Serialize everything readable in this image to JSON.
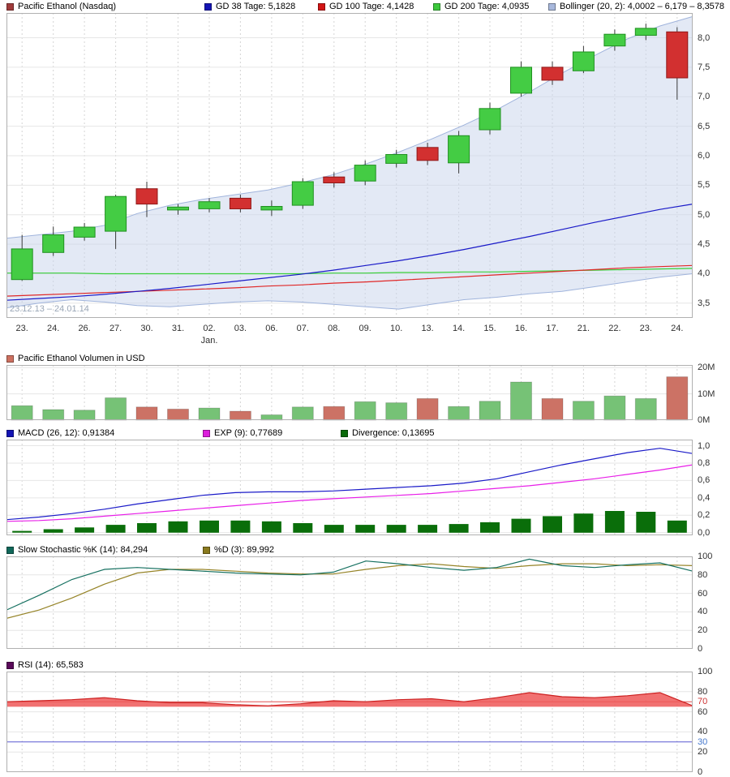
{
  "page": {
    "background": "#ffffff"
  },
  "chart_data": [
    {
      "id": "price",
      "type": "candlestick",
      "legend": [
        {
          "label": "Pacific Ethanol (Nasdaq)",
          "color": "#a03b3b"
        },
        {
          "label": "GD 38 Tage: 5,1828",
          "color": "#1414b4"
        },
        {
          "label": "GD 100 Tage: 4,1428",
          "color": "#d21414"
        },
        {
          "label": "GD 200 Tage: 4,0935",
          "color": "#3cc83c"
        },
        {
          "label": "Bollinger (20, 2): 4,0002 – 6,179 – 8,3578",
          "color": "#a8b8dc"
        }
      ],
      "categories": [
        "23.",
        "24.",
        "26.",
        "27.",
        "30.",
        "31.",
        "02.",
        "03.",
        "06.",
        "07.",
        "08.",
        "09.",
        "10.",
        "13.",
        "14.",
        "15.",
        "16.",
        "17.",
        "21.",
        "22.",
        "23.",
        "24."
      ],
      "month_label": "Jan.",
      "month_label_index": 6,
      "date_range_label": "23.12.13 – 24.01.14",
      "ylim": [
        3.25,
        8.42
      ],
      "yticks": [
        {
          "v": 8.0,
          "label": "8,0"
        },
        {
          "v": 7.5,
          "label": "7,5"
        },
        {
          "v": 7.0,
          "label": "7,0"
        },
        {
          "v": 6.5,
          "label": "6,5"
        },
        {
          "v": 6.0,
          "label": "6,0"
        },
        {
          "v": 5.5,
          "label": "5,5"
        },
        {
          "v": 5.0,
          "label": "5,0"
        },
        {
          "v": 4.5,
          "label": "4,5"
        },
        {
          "v": 4.0,
          "label": "4,0"
        },
        {
          "v": 3.5,
          "label": "3,5"
        }
      ],
      "series": {
        "candles_ohlc": [
          [
            3.9,
            4.66,
            3.88,
            4.42
          ],
          [
            4.36,
            4.8,
            4.3,
            4.66
          ],
          [
            4.62,
            4.86,
            4.56,
            4.79
          ],
          [
            4.72,
            5.34,
            4.42,
            5.31
          ],
          [
            5.44,
            5.56,
            4.96,
            5.18
          ],
          [
            5.08,
            5.18,
            5.0,
            5.13
          ],
          [
            5.1,
            5.28,
            5.04,
            5.22
          ],
          [
            5.28,
            5.34,
            5.04,
            5.1
          ],
          [
            5.08,
            5.24,
            4.98,
            5.14
          ],
          [
            5.16,
            5.62,
            5.1,
            5.56
          ],
          [
            5.64,
            5.72,
            5.46,
            5.54
          ],
          [
            5.57,
            5.92,
            5.5,
            5.84
          ],
          [
            5.87,
            6.1,
            5.8,
            6.02
          ],
          [
            6.14,
            6.22,
            5.84,
            5.92
          ],
          [
            5.88,
            6.42,
            5.7,
            6.34
          ],
          [
            6.44,
            6.9,
            6.36,
            6.8
          ],
          [
            7.06,
            7.6,
            7.0,
            7.5
          ],
          [
            7.5,
            7.6,
            7.2,
            7.28
          ],
          [
            7.44,
            7.86,
            7.4,
            7.76
          ],
          [
            7.86,
            8.14,
            7.78,
            8.06
          ],
          [
            8.04,
            8.24,
            7.96,
            8.16
          ],
          [
            8.1,
            8.18,
            6.95,
            7.32
          ]
        ],
        "bollinger_upper": [
          4.6,
          4.66,
          4.72,
          4.82,
          5.02,
          5.16,
          5.26,
          5.34,
          5.42,
          5.54,
          5.68,
          5.86,
          6.06,
          6.28,
          6.52,
          6.78,
          7.08,
          7.4,
          7.7,
          7.98,
          8.2,
          8.36
        ],
        "bollinger_lower": [
          3.42,
          3.5,
          3.56,
          3.52,
          3.46,
          3.44,
          3.48,
          3.52,
          3.54,
          3.52,
          3.48,
          3.44,
          3.4,
          3.48,
          3.56,
          3.6,
          3.66,
          3.7,
          3.78,
          3.86,
          3.94,
          4.0
        ],
        "gd38": [
          3.55,
          3.58,
          3.61,
          3.65,
          3.7,
          3.75,
          3.81,
          3.87,
          3.93,
          3.99,
          4.06,
          4.14,
          4.22,
          4.31,
          4.41,
          4.52,
          4.63,
          4.75,
          4.87,
          4.98,
          5.09,
          5.18
        ],
        "gd100": [
          3.62,
          3.64,
          3.66,
          3.68,
          3.7,
          3.72,
          3.74,
          3.76,
          3.79,
          3.81,
          3.84,
          3.86,
          3.89,
          3.92,
          3.95,
          3.98,
          4.01,
          4.04,
          4.07,
          4.1,
          4.12,
          4.14
        ],
        "gd200": [
          4.01,
          4.01,
          4.01,
          4.0,
          4.0,
          4.0,
          4.0,
          4.0,
          4.0,
          4.0,
          4.01,
          4.01,
          4.02,
          4.02,
          4.03,
          4.03,
          4.04,
          4.05,
          4.06,
          4.07,
          4.08,
          4.09
        ]
      },
      "colors": {
        "up": "#44cc44",
        "up_stroke": "#209020",
        "down": "#d23030",
        "down_stroke": "#8f1818",
        "bollinger_fill": "#c8d4ec",
        "bollinger_edge": "#a0b4dc",
        "gd38": "#1a1ac8",
        "gd100": "#e02828",
        "gd200": "#38d038"
      }
    },
    {
      "id": "volume",
      "type": "bar",
      "legend": [
        {
          "label": "Pacific Ethanol Volumen in USD",
          "color": "#cd7060"
        }
      ],
      "ylim": [
        0,
        21
      ],
      "yticks": [
        {
          "v": 20,
          "label": "20M"
        },
        {
          "v": 10,
          "label": "10M"
        },
        {
          "v": 0,
          "label": "0M"
        }
      ],
      "values_millions": [
        5.5,
        4.0,
        3.8,
        8.5,
        5.0,
        4.2,
        4.6,
        3.4,
        2.0,
        5.0,
        5.2,
        7.0,
        6.6,
        8.2,
        5.2,
        7.2,
        14.5,
        8.2,
        7.2,
        9.2,
        8.2,
        16.5
      ],
      "directions": [
        "up",
        "up",
        "up",
        "up",
        "down",
        "down",
        "up",
        "down",
        "up",
        "up",
        "down",
        "up",
        "up",
        "down",
        "up",
        "up",
        "up",
        "down",
        "up",
        "up",
        "up",
        "down"
      ],
      "colors": {
        "up": "#76c276",
        "down": "#cc7265"
      }
    },
    {
      "id": "macd",
      "type": "line+histogram",
      "legend": [
        {
          "label": "MACD (26, 12): 0,91384",
          "color": "#1414b4"
        },
        {
          "label": "EXP (9): 0,77689",
          "color": "#dc1edc"
        },
        {
          "label": "Divergence: 0,13695",
          "color": "#0a6a0a"
        }
      ],
      "ylim": [
        -0.03,
        1.07
      ],
      "yticks": [
        {
          "v": 1.0,
          "label": "1,0"
        },
        {
          "v": 0.8,
          "label": "0,8"
        },
        {
          "v": 0.6,
          "label": "0,6"
        },
        {
          "v": 0.4,
          "label": "0,4"
        },
        {
          "v": 0.2,
          "label": "0,2"
        },
        {
          "v": 0.0,
          "label": "0,0"
        }
      ],
      "macd": [
        0.15,
        0.18,
        0.22,
        0.27,
        0.33,
        0.38,
        0.43,
        0.46,
        0.47,
        0.47,
        0.48,
        0.5,
        0.52,
        0.54,
        0.57,
        0.62,
        0.7,
        0.78,
        0.85,
        0.92,
        0.97,
        0.91
      ],
      "signal": [
        0.13,
        0.14,
        0.16,
        0.19,
        0.22,
        0.25,
        0.28,
        0.31,
        0.34,
        0.37,
        0.39,
        0.41,
        0.43,
        0.45,
        0.48,
        0.51,
        0.54,
        0.58,
        0.62,
        0.67,
        0.72,
        0.78
      ],
      "histogram": [
        0.02,
        0.04,
        0.06,
        0.09,
        0.11,
        0.13,
        0.14,
        0.14,
        0.13,
        0.11,
        0.09,
        0.09,
        0.09,
        0.09,
        0.1,
        0.12,
        0.16,
        0.19,
        0.22,
        0.25,
        0.24,
        0.14
      ],
      "colors": {
        "macd": "#1a1ac8",
        "signal": "#e81ee8",
        "histogram": "#0a6e0a"
      }
    },
    {
      "id": "stoch",
      "type": "line",
      "legend": [
        {
          "label": "Slow Stochastic %K (14): 84,294",
          "color": "#11685a"
        },
        {
          "label": "%D (3): 89,992",
          "color": "#8a7a1e"
        }
      ],
      "ylim": [
        0,
        100
      ],
      "yticks": [
        {
          "v": 100,
          "label": "100"
        },
        {
          "v": 80,
          "label": "80"
        },
        {
          "v": 60,
          "label": "60"
        },
        {
          "v": 40,
          "label": "40"
        },
        {
          "v": 20,
          "label": "20"
        },
        {
          "v": 0,
          "label": "0"
        }
      ],
      "k": [
        42,
        58,
        75,
        86,
        88,
        86,
        84,
        82,
        81,
        80,
        83,
        95,
        92,
        88,
        85,
        88,
        97,
        90,
        88,
        91,
        93,
        84
      ],
      "d": [
        33,
        42,
        55,
        70,
        82,
        86,
        86,
        84,
        82,
        81,
        81,
        86,
        90,
        92,
        89,
        87,
        90,
        92,
        92,
        90,
        91,
        90
      ],
      "colors": {
        "k": "#157060",
        "d": "#968428"
      }
    },
    {
      "id": "rsi",
      "type": "area",
      "legend": [
        {
          "label": "RSI (14): 65,583",
          "color": "#5a0a5a"
        }
      ],
      "ylim": [
        0,
        100
      ],
      "yticks": [
        {
          "v": 100,
          "label": "100"
        },
        {
          "v": 80,
          "label": "80"
        },
        {
          "v": 70,
          "label": "70",
          "color": "#cc3030"
        },
        {
          "v": 60,
          "label": "60"
        },
        {
          "v": 40,
          "label": "40"
        },
        {
          "v": 30,
          "label": "30",
          "color": "#4477cc"
        },
        {
          "v": 20,
          "label": "20"
        },
        {
          "v": 0,
          "label": "0"
        }
      ],
      "values": [
        70,
        71,
        72,
        74,
        71,
        69,
        69,
        67,
        66,
        68,
        71,
        70,
        72,
        73,
        70,
        74,
        79,
        75,
        74,
        76,
        79,
        66
      ],
      "fill_baseline": 65,
      "ref_lines": [
        {
          "v": 70,
          "color": "#e05050"
        },
        {
          "v": 30,
          "color": "#5a5ad2"
        }
      ],
      "colors": {
        "line": "#cc2020",
        "fill": "#ee5858"
      }
    }
  ]
}
